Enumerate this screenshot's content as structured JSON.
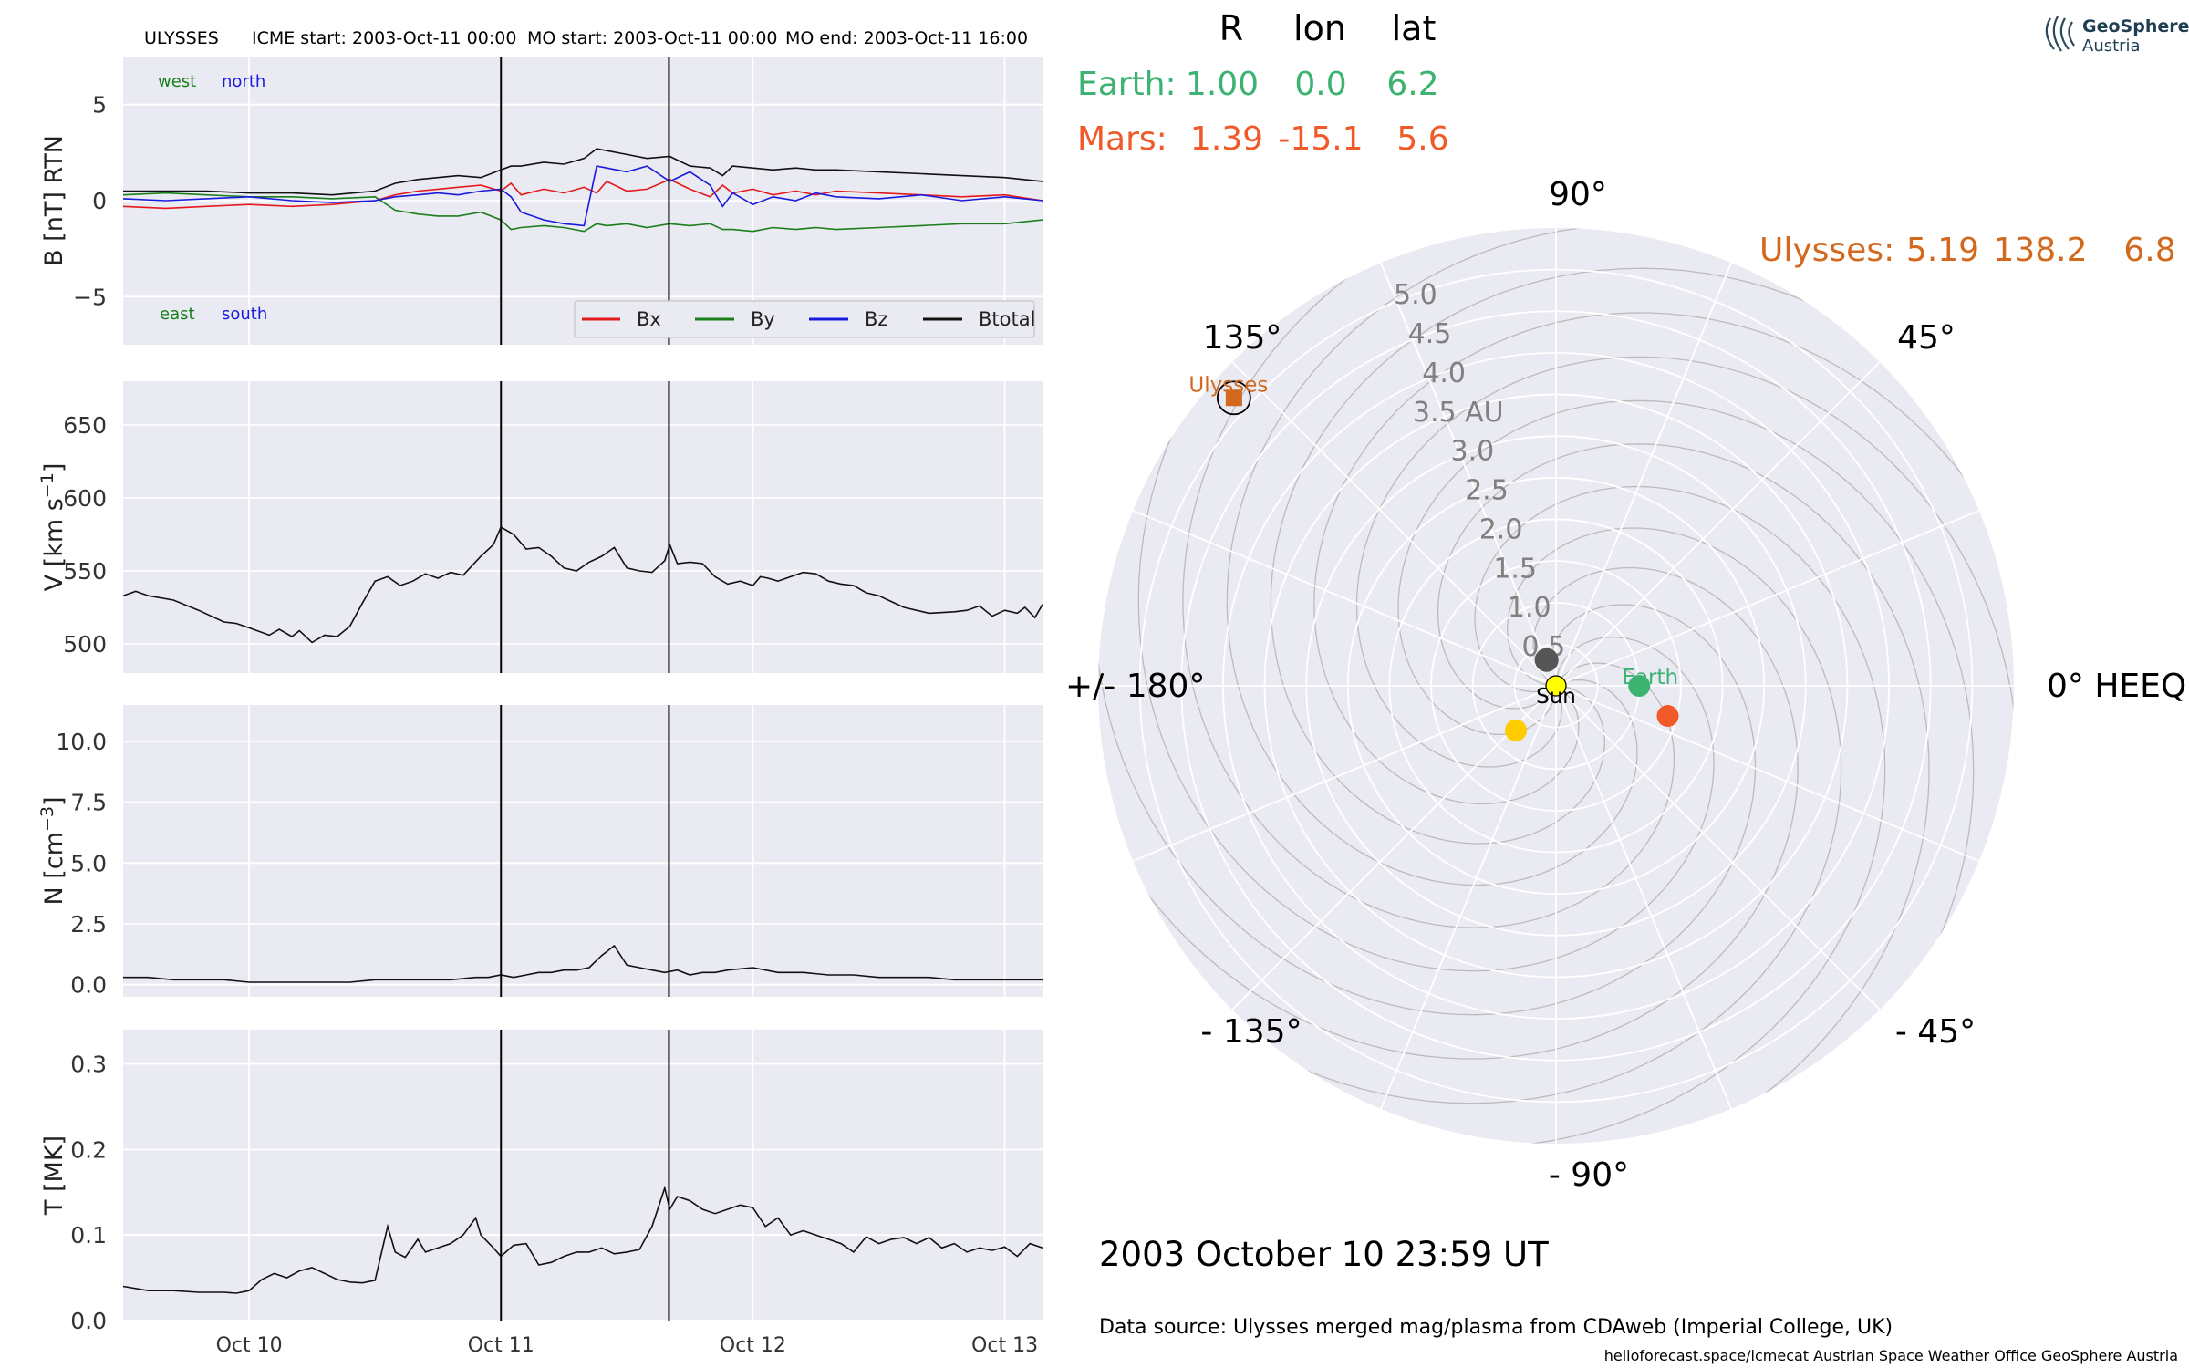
{
  "colors": {
    "panel_bg": "#eaeaf2",
    "grid": "#ffffff",
    "bx": "#e41a1c",
    "by": "#1a7f1a",
    "bz": "#1a1adf",
    "btotal": "#111111",
    "earth": "#3cb371",
    "mars": "#f05a28",
    "ulysses": "#d2691e",
    "sun": "#ffff00",
    "planet_grey": "#555555",
    "planet_yellow": "#ffcc00",
    "rings": "#bbbbbb"
  },
  "header": {
    "spacecraft": "ULYSSES",
    "icme_start": "ICME start: 2003-Oct-11 00:00",
    "mo_start": "MO start: 2003-Oct-11 00:00",
    "mo_end": "MO end: 2003-Oct-11 16:00"
  },
  "logo": {
    "line1": "GeoSphere",
    "line2": "Austria"
  },
  "positions_table": {
    "col_r": "R",
    "col_lon": "lon",
    "col_lat": "lat",
    "earth_label": "Earth:",
    "earth_r": "1.00",
    "earth_lon": "0.0",
    "earth_lat": "6.2",
    "mars_label": "Mars:",
    "mars_r": "1.39",
    "mars_lon": "-15.1",
    "mars_lat": "5.6",
    "ulysses_label": "Ulysses:",
    "ulysses_r": "5.19",
    "ulysses_lon": "138.2",
    "ulysses_lat": "6.8"
  },
  "polar": {
    "angle_labels": {
      "a90": "90°",
      "a45": "45°",
      "a0": "0° HEEQ",
      "am45": "- 45°",
      "am90": "- 90°",
      "am135": "- 135°",
      "a180": "+/- 180°",
      "a135": "135°"
    },
    "radial_labels": [
      "0.5",
      "1.0",
      "1.5",
      "2.0",
      "2.5",
      "3.0",
      "3.5 AU",
      "4.0",
      "4.5",
      "5.0"
    ],
    "bodies": {
      "sun": "Sun",
      "earth": "Earth",
      "ulysses": "Ulysses"
    }
  },
  "datetime_label": "2003 October 10  23:59 UT",
  "data_source": "Data source: Ulysses merged mag/plasma from CDAweb (Imperial College, UK)",
  "credits": "helioforecast.space/icmecat   Austrian Space Weather Office   GeoSphere Austria",
  "chart_data": [
    {
      "type": "line",
      "panel": "B",
      "ylabel": "B [nT] RTN",
      "ylim": [
        -7.5,
        7.5
      ],
      "yticks": [
        "5",
        "0",
        "−5"
      ],
      "ytick_values": [
        5,
        0,
        -5
      ],
      "xlim": [
        9.5,
        13.15
      ],
      "xticks": [
        "Oct 10",
        "Oct 11",
        "Oct 12",
        "Oct 13"
      ],
      "xtick_values": [
        10,
        11,
        12,
        13
      ],
      "annotations": {
        "west": "west",
        "north": "north",
        "east": "east",
        "south": "south"
      },
      "x": [
        9.5,
        9.67,
        9.83,
        10.0,
        10.17,
        10.33,
        10.5,
        10.58,
        10.67,
        10.75,
        10.83,
        10.92,
        11.0,
        11.04,
        11.08,
        11.17,
        11.25,
        11.33,
        11.38,
        11.42,
        11.5,
        11.58,
        11.67,
        11.75,
        11.83,
        11.88,
        11.92,
        12.0,
        12.08,
        12.17,
        12.25,
        12.33,
        12.5,
        12.67,
        12.83,
        13.0,
        13.15
      ],
      "series": [
        {
          "name": "Bx",
          "values": [
            -0.3,
            -0.4,
            -0.3,
            -0.2,
            -0.3,
            -0.2,
            0.0,
            0.3,
            0.5,
            0.6,
            0.7,
            0.8,
            0.5,
            0.9,
            0.3,
            0.6,
            0.4,
            0.7,
            0.4,
            1.0,
            0.5,
            0.6,
            1.1,
            0.6,
            0.2,
            0.8,
            0.4,
            0.6,
            0.3,
            0.5,
            0.3,
            0.5,
            0.4,
            0.3,
            0.2,
            0.3,
            0.0
          ]
        },
        {
          "name": "By",
          "values": [
            0.3,
            0.4,
            0.3,
            0.2,
            0.2,
            0.1,
            0.2,
            -0.5,
            -0.7,
            -0.8,
            -0.8,
            -0.6,
            -1.0,
            -1.5,
            -1.4,
            -1.3,
            -1.4,
            -1.6,
            -1.2,
            -1.3,
            -1.2,
            -1.4,
            -1.2,
            -1.3,
            -1.2,
            -1.5,
            -1.5,
            -1.6,
            -1.4,
            -1.5,
            -1.4,
            -1.5,
            -1.4,
            -1.3,
            -1.2,
            -1.2,
            -1.0
          ]
        },
        {
          "name": "Bz",
          "values": [
            0.1,
            0.0,
            0.1,
            0.2,
            0.0,
            -0.1,
            0.0,
            0.2,
            0.3,
            0.4,
            0.3,
            0.5,
            0.6,
            0.2,
            -0.6,
            -1.0,
            -1.2,
            -1.3,
            1.8,
            1.7,
            1.5,
            1.8,
            1.0,
            1.5,
            0.8,
            -0.3,
            0.4,
            -0.2,
            0.2,
            0.0,
            0.4,
            0.2,
            0.1,
            0.3,
            0.0,
            0.2,
            0.0
          ]
        },
        {
          "name": "Btotal",
          "values": [
            0.5,
            0.5,
            0.5,
            0.4,
            0.4,
            0.3,
            0.5,
            0.9,
            1.1,
            1.2,
            1.3,
            1.2,
            1.6,
            1.8,
            1.8,
            2.0,
            1.9,
            2.2,
            2.7,
            2.6,
            2.4,
            2.2,
            2.3,
            1.8,
            1.7,
            1.3,
            1.8,
            1.7,
            1.6,
            1.7,
            1.6,
            1.6,
            1.5,
            1.4,
            1.3,
            1.2,
            1.0
          ]
        }
      ]
    },
    {
      "type": "line",
      "panel": "V",
      "ylabel": "V [km s$^{-1}$]",
      "ylim": [
        480,
        680
      ],
      "yticks": [
        "650",
        "600",
        "550",
        "500"
      ],
      "ytick_values": [
        650,
        600,
        550,
        500
      ],
      "x": [
        9.5,
        9.55,
        9.6,
        9.7,
        9.8,
        9.9,
        9.95,
        10.0,
        10.08,
        10.12,
        10.17,
        10.2,
        10.25,
        10.3,
        10.35,
        10.4,
        10.45,
        10.5,
        10.55,
        10.6,
        10.65,
        10.7,
        10.75,
        10.8,
        10.85,
        10.92,
        10.97,
        11.0,
        11.05,
        11.1,
        11.15,
        11.2,
        11.25,
        11.3,
        11.35,
        11.4,
        11.45,
        11.5,
        11.55,
        11.6,
        11.65,
        11.67,
        11.7,
        11.75,
        11.8,
        11.85,
        11.9,
        11.95,
        12.0,
        12.03,
        12.06,
        12.1,
        12.15,
        12.2,
        12.25,
        12.3,
        12.35,
        12.4,
        12.45,
        12.5,
        12.55,
        12.6,
        12.7,
        12.8,
        12.85,
        12.9,
        12.95,
        13.0,
        13.05,
        13.08,
        13.12,
        13.15
      ],
      "series": [
        {
          "name": "V",
          "values": [
            533,
            536,
            533,
            530,
            523,
            515,
            514,
            511,
            506,
            510,
            505,
            509,
            501,
            506,
            505,
            512,
            528,
            543,
            546,
            540,
            543,
            548,
            545,
            549,
            547,
            560,
            568,
            580,
            575,
            565,
            566,
            560,
            552,
            550,
            556,
            560,
            566,
            552,
            550,
            549,
            557,
            568,
            555,
            556,
            555,
            546,
            541,
            543,
            540,
            546,
            545,
            543,
            546,
            549,
            548,
            543,
            541,
            540,
            535,
            533,
            529,
            525,
            521,
            522,
            523,
            526,
            519,
            523,
            521,
            525,
            518,
            527
          ]
        }
      ]
    },
    {
      "type": "line",
      "panel": "N",
      "ylabel": "N [cm$^{-3}$]",
      "ylim": [
        -0.5,
        11.5
      ],
      "yticks": [
        "10.0",
        "7.5",
        "5.0",
        "2.5",
        "0.0"
      ],
      "ytick_values": [
        10.0,
        7.5,
        5.0,
        2.5,
        0.0
      ],
      "x": [
        9.5,
        9.6,
        9.7,
        9.8,
        9.9,
        10.0,
        10.1,
        10.2,
        10.3,
        10.4,
        10.5,
        10.6,
        10.7,
        10.8,
        10.9,
        10.95,
        11.0,
        11.05,
        11.1,
        11.15,
        11.2,
        11.25,
        11.3,
        11.35,
        11.4,
        11.45,
        11.5,
        11.55,
        11.6,
        11.65,
        11.7,
        11.75,
        11.8,
        11.85,
        11.9,
        12.0,
        12.1,
        12.2,
        12.3,
        12.4,
        12.5,
        12.6,
        12.7,
        12.8,
        12.9,
        13.0,
        13.15
      ],
      "series": [
        {
          "name": "N",
          "values": [
            0.3,
            0.3,
            0.2,
            0.2,
            0.2,
            0.1,
            0.1,
            0.1,
            0.1,
            0.1,
            0.2,
            0.2,
            0.2,
            0.2,
            0.3,
            0.3,
            0.4,
            0.3,
            0.4,
            0.5,
            0.5,
            0.6,
            0.6,
            0.7,
            1.2,
            1.6,
            0.8,
            0.7,
            0.6,
            0.5,
            0.6,
            0.4,
            0.5,
            0.5,
            0.6,
            0.7,
            0.5,
            0.5,
            0.4,
            0.4,
            0.3,
            0.3,
            0.3,
            0.2,
            0.2,
            0.2,
            0.2
          ]
        }
      ]
    },
    {
      "type": "line",
      "panel": "T",
      "ylabel": "T [MK]",
      "ylim": [
        0.0,
        0.34
      ],
      "yticks": [
        "0.3",
        "0.2",
        "0.1",
        "0.0"
      ],
      "ytick_values": [
        0.3,
        0.2,
        0.1,
        0.0
      ],
      "x": [
        9.5,
        9.6,
        9.7,
        9.8,
        9.9,
        9.95,
        10.0,
        10.05,
        10.1,
        10.15,
        10.2,
        10.25,
        10.3,
        10.35,
        10.4,
        10.45,
        10.5,
        10.55,
        10.58,
        10.62,
        10.67,
        10.7,
        10.75,
        10.8,
        10.85,
        10.9,
        10.92,
        10.97,
        11.0,
        11.05,
        11.1,
        11.15,
        11.2,
        11.25,
        11.3,
        11.35,
        11.4,
        11.45,
        11.5,
        11.55,
        11.6,
        11.65,
        11.67,
        11.7,
        11.75,
        11.8,
        11.85,
        11.9,
        11.95,
        12.0,
        12.05,
        12.1,
        12.15,
        12.2,
        12.25,
        12.3,
        12.35,
        12.4,
        12.45,
        12.5,
        12.55,
        12.6,
        12.65,
        12.7,
        12.75,
        12.8,
        12.85,
        12.9,
        12.95,
        13.0,
        13.05,
        13.1,
        13.15
      ],
      "series": [
        {
          "name": "T",
          "values": [
            0.04,
            0.035,
            0.035,
            0.033,
            0.033,
            0.032,
            0.035,
            0.048,
            0.055,
            0.05,
            0.058,
            0.062,
            0.055,
            0.048,
            0.045,
            0.044,
            0.047,
            0.11,
            0.08,
            0.074,
            0.095,
            0.08,
            0.085,
            0.09,
            0.1,
            0.12,
            0.1,
            0.085,
            0.075,
            0.088,
            0.09,
            0.065,
            0.068,
            0.075,
            0.08,
            0.08,
            0.085,
            0.078,
            0.08,
            0.083,
            0.11,
            0.155,
            0.13,
            0.145,
            0.14,
            0.13,
            0.125,
            0.13,
            0.135,
            0.132,
            0.11,
            0.12,
            0.1,
            0.105,
            0.1,
            0.095,
            0.09,
            0.08,
            0.098,
            0.09,
            0.095,
            0.097,
            0.09,
            0.097,
            0.085,
            0.09,
            0.08,
            0.085,
            0.082,
            0.086,
            0.075,
            0.09,
            0.085
          ]
        }
      ]
    },
    {
      "type": "scatter",
      "panel": "polar",
      "coordinates": "polar, HEEQ longitude (deg) / radius (AU)",
      "rlim": [
        0,
        5.5
      ],
      "points": [
        {
          "name": "Sun",
          "r": 0.0,
          "lon": 0.0
        },
        {
          "name": "Earth",
          "r": 1.0,
          "lon": 0.0
        },
        {
          "name": "Mars",
          "r": 1.39,
          "lon": -15.1
        },
        {
          "name": "Ulysses",
          "r": 5.19,
          "lon": 138.2
        },
        {
          "name": "grey body",
          "r": 0.33,
          "lon": 110.0
        },
        {
          "name": "yellow body",
          "r": 0.72,
          "lon": -132.0
        }
      ]
    }
  ]
}
